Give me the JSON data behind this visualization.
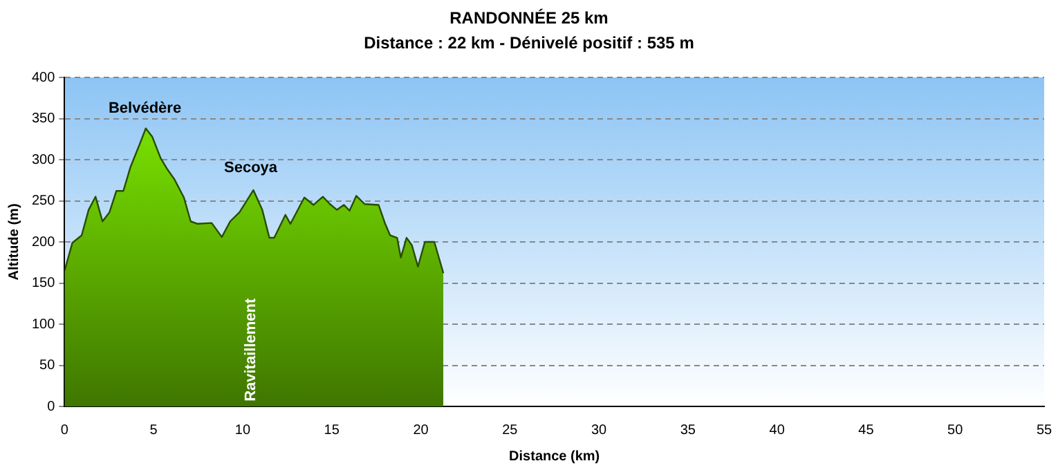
{
  "chart_data": {
    "type": "area",
    "title": "RANDONNÉE 25 km",
    "subtitle": "Distance : 22 km - Dénivelé positif : 535 m",
    "xlabel": "Distance (km)",
    "ylabel": "Altitude (m)",
    "series": [
      {
        "color": "#5aa800",
        "x": [
          0,
          0.44,
          0.96,
          1.35,
          1.74,
          2.13,
          2.52,
          2.91,
          3.3,
          3.7,
          4.22,
          4.56,
          4.92,
          5.39,
          5.78,
          6.17,
          6.7,
          7.08,
          7.47,
          8.26,
          8.83,
          9.3,
          9.82,
          10.6,
          11.1,
          11.5,
          11.77,
          12.4,
          12.68,
          12.95,
          13.46,
          13.98,
          14.5,
          14.9,
          15.29,
          15.68,
          16.0,
          16.38,
          16.85,
          17.63,
          18.0,
          18.28,
          18.67,
          18.88,
          19.2,
          19.5,
          19.84,
          20.23,
          20.76,
          21.27
        ],
        "values": [
          165,
          199,
          208,
          239,
          255,
          225,
          236,
          262,
          262,
          291,
          319,
          338,
          328,
          302,
          288,
          276,
          254,
          225,
          222,
          223,
          206,
          225,
          236,
          263,
          239,
          205,
          205,
          233,
          222,
          233,
          254,
          245,
          255,
          246,
          239,
          245,
          238,
          256,
          246,
          245,
          222,
          208,
          205,
          181,
          205,
          196,
          170,
          200,
          200,
          162
        ]
      }
    ],
    "xlim": [
      0,
      55
    ],
    "xticks": [
      0,
      5,
      10,
      15,
      20,
      25,
      30,
      35,
      40,
      45,
      50,
      55
    ],
    "ylim": [
      0,
      400
    ],
    "yticks": [
      0,
      50,
      100,
      150,
      200,
      250,
      300,
      350,
      400
    ],
    "grid": "y",
    "line_style": "solid",
    "annotations": [
      "Belvédère",
      "Secoya",
      "Ravitaillement"
    ]
  }
}
